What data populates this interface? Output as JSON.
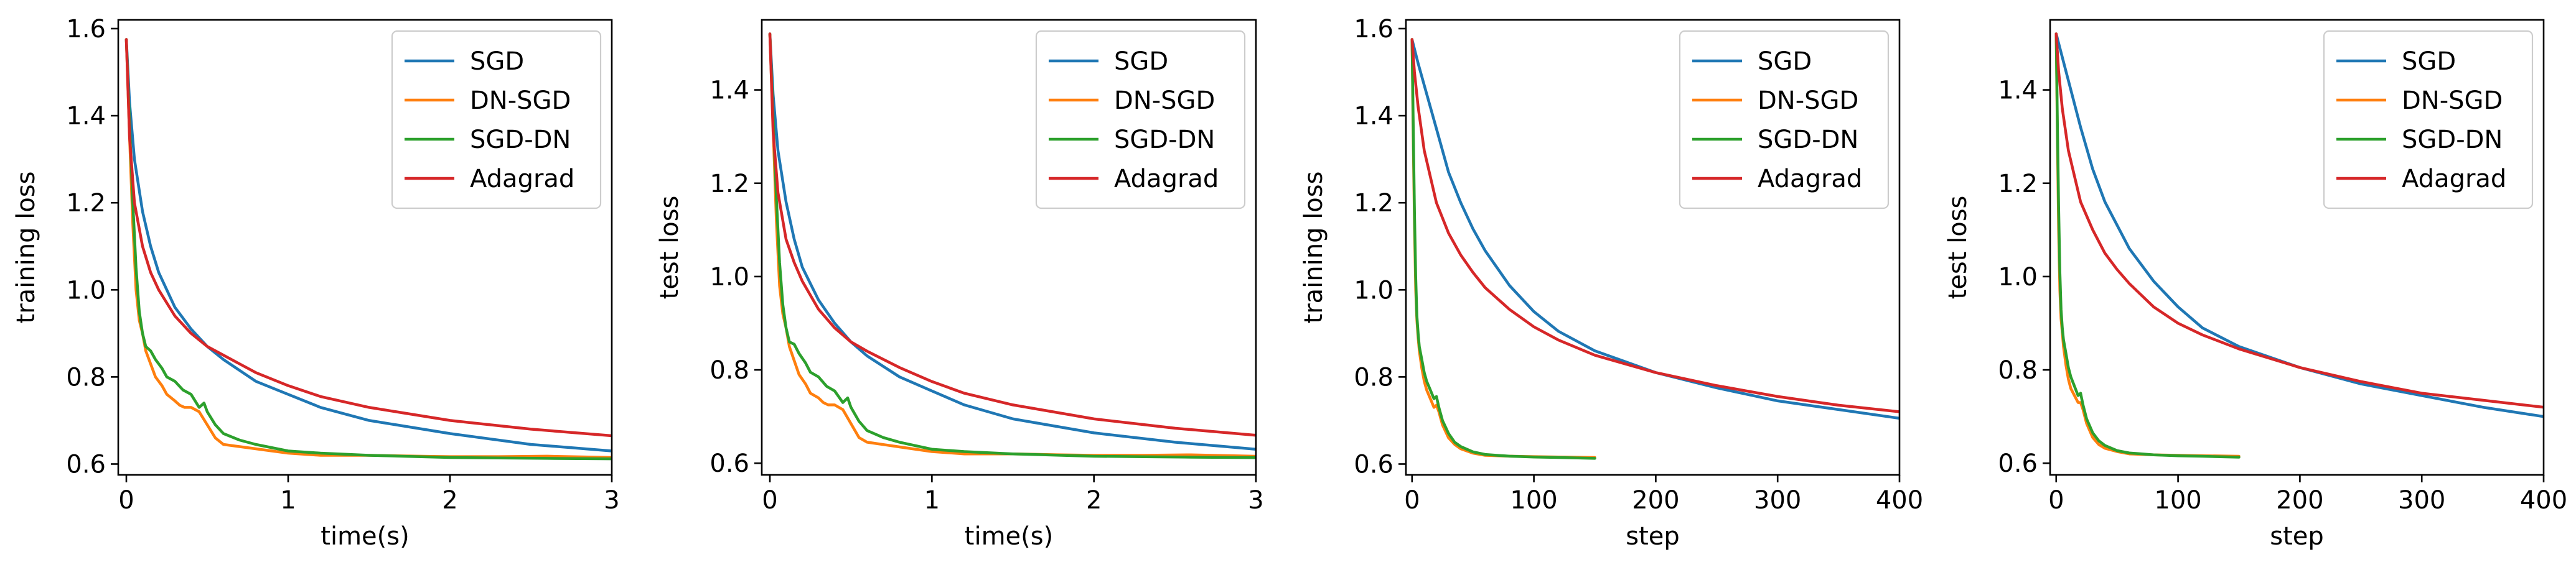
{
  "colors": {
    "SGD": "#1f77b4",
    "DN-SGD": "#ff7f0e",
    "SGD-DN": "#2ca02c",
    "Adagrad": "#d62728"
  },
  "chart_data": [
    {
      "type": "line",
      "title": "",
      "xlabel": "time(s)",
      "ylabel": "training loss",
      "xlim": [
        -0.05,
        3
      ],
      "ylim": [
        0.575,
        1.62
      ],
      "xticks": [
        0,
        1,
        2,
        3
      ],
      "xtick_labels": [
        "0",
        "1",
        "2",
        "3"
      ],
      "yticks": [
        0.6,
        0.8,
        1.0,
        1.2,
        1.4,
        1.6
      ],
      "ytick_labels": [
        "0.6",
        "0.8",
        "1.0",
        "1.2",
        "1.4",
        "1.6"
      ],
      "legend": [
        "SGD",
        "DN-SGD",
        "SGD-DN",
        "Adagrad"
      ],
      "legend_position": "top-right",
      "series": [
        {
          "name": "SGD",
          "x": [
            0,
            0.02,
            0.05,
            0.1,
            0.15,
            0.2,
            0.3,
            0.4,
            0.5,
            0.6,
            0.8,
            1.0,
            1.2,
            1.5,
            2.0,
            2.5,
            3.0
          ],
          "y": [
            1.575,
            1.43,
            1.3,
            1.18,
            1.1,
            1.04,
            0.96,
            0.91,
            0.87,
            0.84,
            0.79,
            0.76,
            0.73,
            0.7,
            0.67,
            0.645,
            0.63
          ]
        },
        {
          "name": "DN-SGD",
          "x": [
            0,
            0.02,
            0.04,
            0.06,
            0.08,
            0.1,
            0.12,
            0.15,
            0.18,
            0.22,
            0.25,
            0.3,
            0.33,
            0.36,
            0.4,
            0.45,
            0.5,
            0.55,
            0.6,
            0.7,
            0.8,
            1.0,
            1.2,
            1.5,
            1.8,
            2.0,
            2.3,
            2.6,
            3.0
          ],
          "y": [
            1.575,
            1.35,
            1.15,
            1.0,
            0.93,
            0.9,
            0.86,
            0.83,
            0.8,
            0.78,
            0.76,
            0.745,
            0.735,
            0.73,
            0.73,
            0.72,
            0.69,
            0.66,
            0.645,
            0.64,
            0.635,
            0.625,
            0.62,
            0.62,
            0.618,
            0.617,
            0.617,
            0.618,
            0.615
          ]
        },
        {
          "name": "SGD-DN",
          "x": [
            0,
            0.02,
            0.04,
            0.06,
            0.08,
            0.1,
            0.12,
            0.15,
            0.18,
            0.22,
            0.25,
            0.3,
            0.35,
            0.4,
            0.45,
            0.48,
            0.5,
            0.55,
            0.6,
            0.7,
            0.8,
            1.0,
            1.2,
            1.5,
            1.8,
            2.0,
            2.3,
            2.6,
            3.0
          ],
          "y": [
            1.575,
            1.38,
            1.2,
            1.05,
            0.95,
            0.9,
            0.87,
            0.86,
            0.84,
            0.82,
            0.8,
            0.79,
            0.77,
            0.76,
            0.73,
            0.74,
            0.72,
            0.69,
            0.67,
            0.655,
            0.645,
            0.63,
            0.625,
            0.62,
            0.617,
            0.615,
            0.614,
            0.613,
            0.612
          ]
        },
        {
          "name": "Adagrad",
          "x": [
            0,
            0.02,
            0.05,
            0.1,
            0.15,
            0.2,
            0.3,
            0.4,
            0.5,
            0.6,
            0.8,
            1.0,
            1.2,
            1.5,
            2.0,
            2.5,
            3.0
          ],
          "y": [
            1.575,
            1.35,
            1.2,
            1.1,
            1.04,
            1.0,
            0.94,
            0.9,
            0.87,
            0.85,
            0.81,
            0.78,
            0.755,
            0.73,
            0.7,
            0.68,
            0.665
          ]
        }
      ]
    },
    {
      "type": "line",
      "title": "",
      "xlabel": "time(s)",
      "ylabel": "test loss",
      "xlim": [
        -0.05,
        3
      ],
      "ylim": [
        0.575,
        1.55
      ],
      "xticks": [
        0,
        1,
        2,
        3
      ],
      "xtick_labels": [
        "0",
        "1",
        "2",
        "3"
      ],
      "yticks": [
        0.6,
        0.8,
        1.0,
        1.2,
        1.4
      ],
      "ytick_labels": [
        "0.6",
        "0.8",
        "1.0",
        "1.2",
        "1.4"
      ],
      "legend": [
        "SGD",
        "DN-SGD",
        "SGD-DN",
        "Adagrad"
      ],
      "legend_position": "top-right",
      "series": [
        {
          "name": "SGD",
          "x": [
            0,
            0.02,
            0.05,
            0.1,
            0.15,
            0.2,
            0.3,
            0.4,
            0.5,
            0.6,
            0.8,
            1.0,
            1.2,
            1.5,
            2.0,
            2.5,
            3.0
          ],
          "y": [
            1.52,
            1.39,
            1.27,
            1.16,
            1.08,
            1.02,
            0.95,
            0.9,
            0.86,
            0.83,
            0.785,
            0.755,
            0.725,
            0.695,
            0.665,
            0.645,
            0.63
          ]
        },
        {
          "name": "DN-SGD",
          "x": [
            0,
            0.02,
            0.04,
            0.06,
            0.08,
            0.1,
            0.12,
            0.15,
            0.18,
            0.22,
            0.25,
            0.3,
            0.33,
            0.36,
            0.4,
            0.45,
            0.5,
            0.55,
            0.6,
            0.7,
            0.8,
            1.0,
            1.2,
            1.5,
            1.8,
            2.0,
            2.3,
            2.6,
            3.0
          ],
          "y": [
            1.52,
            1.32,
            1.12,
            0.98,
            0.92,
            0.89,
            0.85,
            0.82,
            0.79,
            0.77,
            0.75,
            0.74,
            0.73,
            0.725,
            0.725,
            0.715,
            0.685,
            0.655,
            0.645,
            0.64,
            0.635,
            0.625,
            0.62,
            0.62,
            0.618,
            0.617,
            0.617,
            0.618,
            0.615
          ]
        },
        {
          "name": "SGD-DN",
          "x": [
            0,
            0.02,
            0.04,
            0.06,
            0.08,
            0.1,
            0.12,
            0.15,
            0.18,
            0.22,
            0.25,
            0.3,
            0.35,
            0.4,
            0.45,
            0.48,
            0.5,
            0.55,
            0.6,
            0.7,
            0.8,
            1.0,
            1.2,
            1.5,
            1.8,
            2.0,
            2.3,
            2.6,
            3.0
          ],
          "y": [
            1.52,
            1.34,
            1.17,
            1.03,
            0.94,
            0.89,
            0.86,
            0.855,
            0.835,
            0.815,
            0.795,
            0.785,
            0.765,
            0.755,
            0.73,
            0.74,
            0.72,
            0.69,
            0.67,
            0.655,
            0.645,
            0.63,
            0.625,
            0.62,
            0.617,
            0.615,
            0.614,
            0.613,
            0.612
          ]
        },
        {
          "name": "Adagrad",
          "x": [
            0,
            0.02,
            0.05,
            0.1,
            0.15,
            0.2,
            0.3,
            0.4,
            0.5,
            0.6,
            0.8,
            1.0,
            1.2,
            1.5,
            2.0,
            2.5,
            3.0
          ],
          "y": [
            1.52,
            1.31,
            1.18,
            1.08,
            1.03,
            0.99,
            0.93,
            0.89,
            0.86,
            0.84,
            0.805,
            0.775,
            0.75,
            0.725,
            0.695,
            0.675,
            0.66
          ]
        }
      ]
    },
    {
      "type": "line",
      "title": "",
      "xlabel": "step",
      "ylabel": "training loss",
      "xlim": [
        -5,
        400
      ],
      "ylim": [
        0.575,
        1.62
      ],
      "xticks": [
        0,
        100,
        200,
        300,
        400
      ],
      "xtick_labels": [
        "0",
        "100",
        "200",
        "300",
        "400"
      ],
      "yticks": [
        0.6,
        0.8,
        1.0,
        1.2,
        1.4,
        1.6
      ],
      "ytick_labels": [
        "0.6",
        "0.8",
        "1.0",
        "1.2",
        "1.4",
        "1.6"
      ],
      "legend": [
        "SGD",
        "DN-SGD",
        "SGD-DN",
        "Adagrad"
      ],
      "legend_position": "top-right",
      "series": [
        {
          "name": "SGD",
          "x": [
            0,
            5,
            10,
            20,
            30,
            40,
            50,
            60,
            80,
            100,
            120,
            150,
            200,
            250,
            300,
            350,
            400
          ],
          "y": [
            1.575,
            1.52,
            1.47,
            1.37,
            1.27,
            1.2,
            1.14,
            1.09,
            1.01,
            0.95,
            0.905,
            0.86,
            0.81,
            0.775,
            0.745,
            0.725,
            0.705
          ]
        },
        {
          "name": "DN-SGD",
          "x": [
            0,
            1,
            2,
            3,
            4,
            5,
            6,
            8,
            10,
            12,
            15,
            18,
            20,
            22,
            25,
            30,
            35,
            40,
            50,
            60,
            80,
            100,
            120,
            150
          ],
          "y": [
            1.575,
            1.35,
            1.15,
            1.0,
            0.93,
            0.89,
            0.86,
            0.82,
            0.79,
            0.77,
            0.75,
            0.73,
            0.735,
            0.72,
            0.69,
            0.66,
            0.645,
            0.635,
            0.625,
            0.62,
            0.618,
            0.617,
            0.616,
            0.615
          ]
        },
        {
          "name": "SGD-DN",
          "x": [
            0,
            1,
            2,
            3,
            4,
            5,
            6,
            8,
            10,
            12,
            15,
            18,
            20,
            22,
            25,
            30,
            35,
            40,
            50,
            60,
            80,
            100,
            120,
            150
          ],
          "y": [
            1.575,
            1.38,
            1.18,
            1.03,
            0.94,
            0.9,
            0.87,
            0.84,
            0.81,
            0.79,
            0.77,
            0.75,
            0.755,
            0.73,
            0.7,
            0.67,
            0.65,
            0.64,
            0.628,
            0.622,
            0.618,
            0.616,
            0.615,
            0.613
          ]
        },
        {
          "name": "Adagrad",
          "x": [
            0,
            2,
            5,
            10,
            20,
            30,
            40,
            50,
            60,
            80,
            100,
            120,
            150,
            200,
            250,
            300,
            350,
            400
          ],
          "y": [
            1.575,
            1.5,
            1.42,
            1.32,
            1.2,
            1.13,
            1.08,
            1.04,
            1.005,
            0.955,
            0.915,
            0.885,
            0.85,
            0.81,
            0.78,
            0.755,
            0.735,
            0.72
          ]
        }
      ]
    },
    {
      "type": "line",
      "title": "",
      "xlabel": "step",
      "ylabel": "test loss",
      "xlim": [
        -5,
        400
      ],
      "ylim": [
        0.575,
        1.55
      ],
      "xticks": [
        0,
        100,
        200,
        300,
        400
      ],
      "xtick_labels": [
        "0",
        "100",
        "200",
        "300",
        "400"
      ],
      "yticks": [
        0.6,
        0.8,
        1.0,
        1.2,
        1.4
      ],
      "ytick_labels": [
        "0.6",
        "0.8",
        "1.0",
        "1.2",
        "1.4"
      ],
      "legend": [
        "SGD",
        "DN-SGD",
        "SGD-DN",
        "Adagrad"
      ],
      "legend_position": "top-right",
      "series": [
        {
          "name": "SGD",
          "x": [
            0,
            5,
            10,
            20,
            30,
            40,
            50,
            60,
            80,
            100,
            120,
            150,
            200,
            250,
            300,
            350,
            400
          ],
          "y": [
            1.52,
            1.47,
            1.42,
            1.32,
            1.23,
            1.16,
            1.11,
            1.06,
            0.99,
            0.935,
            0.89,
            0.85,
            0.805,
            0.77,
            0.745,
            0.72,
            0.7
          ]
        },
        {
          "name": "DN-SGD",
          "x": [
            0,
            1,
            2,
            3,
            4,
            5,
            6,
            8,
            10,
            12,
            15,
            18,
            20,
            22,
            25,
            30,
            35,
            40,
            50,
            60,
            80,
            100,
            120,
            150
          ],
          "y": [
            1.52,
            1.3,
            1.1,
            0.97,
            0.91,
            0.88,
            0.85,
            0.81,
            0.78,
            0.76,
            0.745,
            0.73,
            0.73,
            0.715,
            0.685,
            0.655,
            0.64,
            0.632,
            0.625,
            0.62,
            0.618,
            0.617,
            0.616,
            0.615
          ]
        },
        {
          "name": "SGD-DN",
          "x": [
            0,
            1,
            2,
            3,
            4,
            5,
            6,
            8,
            10,
            12,
            15,
            18,
            20,
            22,
            25,
            30,
            35,
            40,
            50,
            60,
            80,
            100,
            120,
            150
          ],
          "y": [
            1.52,
            1.33,
            1.15,
            1.01,
            0.93,
            0.89,
            0.865,
            0.835,
            0.805,
            0.785,
            0.765,
            0.745,
            0.75,
            0.725,
            0.695,
            0.665,
            0.648,
            0.638,
            0.627,
            0.622,
            0.618,
            0.616,
            0.615,
            0.613
          ]
        },
        {
          "name": "Adagrad",
          "x": [
            0,
            2,
            5,
            10,
            20,
            30,
            40,
            50,
            60,
            80,
            100,
            120,
            150,
            200,
            250,
            300,
            350,
            400
          ],
          "y": [
            1.52,
            1.44,
            1.36,
            1.27,
            1.16,
            1.1,
            1.05,
            1.015,
            0.985,
            0.935,
            0.9,
            0.875,
            0.845,
            0.805,
            0.775,
            0.75,
            0.735,
            0.72
          ]
        }
      ]
    }
  ]
}
